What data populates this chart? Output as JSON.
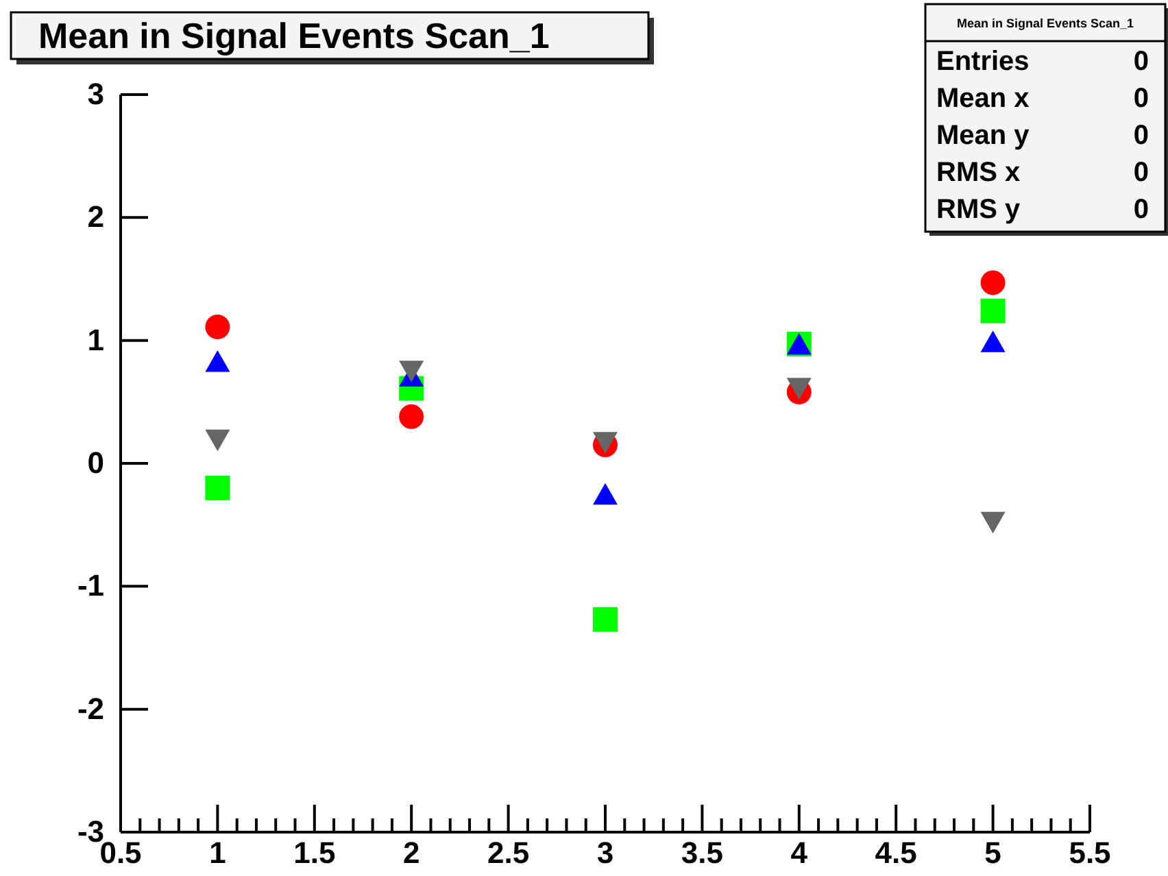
{
  "chart_data": {
    "type": "scatter",
    "title": "Mean in Signal Events Scan_1",
    "x": [
      1,
      2,
      3,
      4,
      5
    ],
    "series": [
      {
        "color": "#ff0000",
        "marker": "circle",
        "values": [
          1.11,
          0.38,
          0.15,
          0.58,
          1.47
        ]
      },
      {
        "color": "#00ff00",
        "marker": "square",
        "values": [
          -0.2,
          0.61,
          -1.27,
          0.97,
          1.24
        ]
      },
      {
        "color": "#0000ff",
        "marker": "triangle",
        "values": [
          0.82,
          0.7,
          -0.26,
          0.96,
          0.98
        ]
      },
      {
        "color": "#666666",
        "marker": "triangle",
        "values": [
          0.2,
          0.76,
          0.18,
          0.62,
          -0.47
        ]
      }
    ],
    "xlim": [
      0.5,
      5.5
    ],
    "xticks": [
      0.5,
      {
        "value": 0.6,
        "label": null
      },
      {
        "value": 0.7,
        "label": null
      },
      {
        "value": 0.8,
        "label": null
      },
      {
        "value": 0.9,
        "label": null
      },
      1,
      {
        "value": 1.1,
        "label": null
      },
      {
        "value": 1.2,
        "label": null
      },
      {
        "value": 1.3,
        "label": null
      },
      {
        "value": 1.4,
        "label": null
      },
      1.5,
      {
        "value": 1.6,
        "label": null
      },
      {
        "value": 1.7,
        "label": null
      },
      {
        "value": 1.8,
        "label": null
      },
      {
        "value": 1.9,
        "label": null
      },
      2,
      {
        "value": 2.1,
        "label": null
      },
      {
        "value": 2.2,
        "label": null
      },
      {
        "value": 2.3,
        "label": null
      },
      {
        "value": 2.4,
        "label": null
      },
      2.5,
      {
        "value": 2.6,
        "label": null
      },
      {
        "value": 2.7,
        "label": null
      },
      {
        "value": 2.8,
        "label": null
      },
      {
        "value": 2.9,
        "label": null
      },
      3,
      {
        "value": 3.1,
        "label": null
      },
      {
        "value": 3.2,
        "label": null
      },
      {
        "value": 3.3,
        "label": null
      },
      {
        "value": 3.4,
        "label": null
      },
      3.5,
      {
        "value": 3.6,
        "label": null
      },
      {
        "value": 3.7,
        "label": null
      },
      {
        "value": 3.8,
        "label": null
      },
      {
        "value": 3.9,
        "label": null
      },
      4,
      {
        "value": 4.1,
        "label": null
      },
      {
        "value": 4.2,
        "label": null
      },
      {
        "value": 4.3,
        "label": null
      },
      {
        "value": 4.4,
        "label": null
      },
      4.5,
      {
        "value": 4.6,
        "label": null
      },
      {
        "value": 4.7,
        "label": null
      },
      {
        "value": 4.8,
        "label": null
      },
      {
        "value": 4.9,
        "label": null
      },
      5,
      {
        "value": 5.1,
        "label": null
      },
      {
        "value": 5.2,
        "label": null
      },
      {
        "value": 5.3,
        "label": null
      },
      {
        "value": 5.4,
        "label": null
      },
      5.5
    ],
    "ylim": [
      -3,
      3
    ],
    "yticks": [
      -3,
      -2,
      -1,
      0,
      1,
      2,
      3
    ],
    "grid": false,
    "legend": false,
    "annotations": [
      "Mean in Signal Events Scan_1",
      "Entries",
      "0",
      "Mean x",
      "0",
      "Mean y",
      "0",
      "RMS x",
      "0",
      "RMS y",
      "0"
    ]
  }
}
